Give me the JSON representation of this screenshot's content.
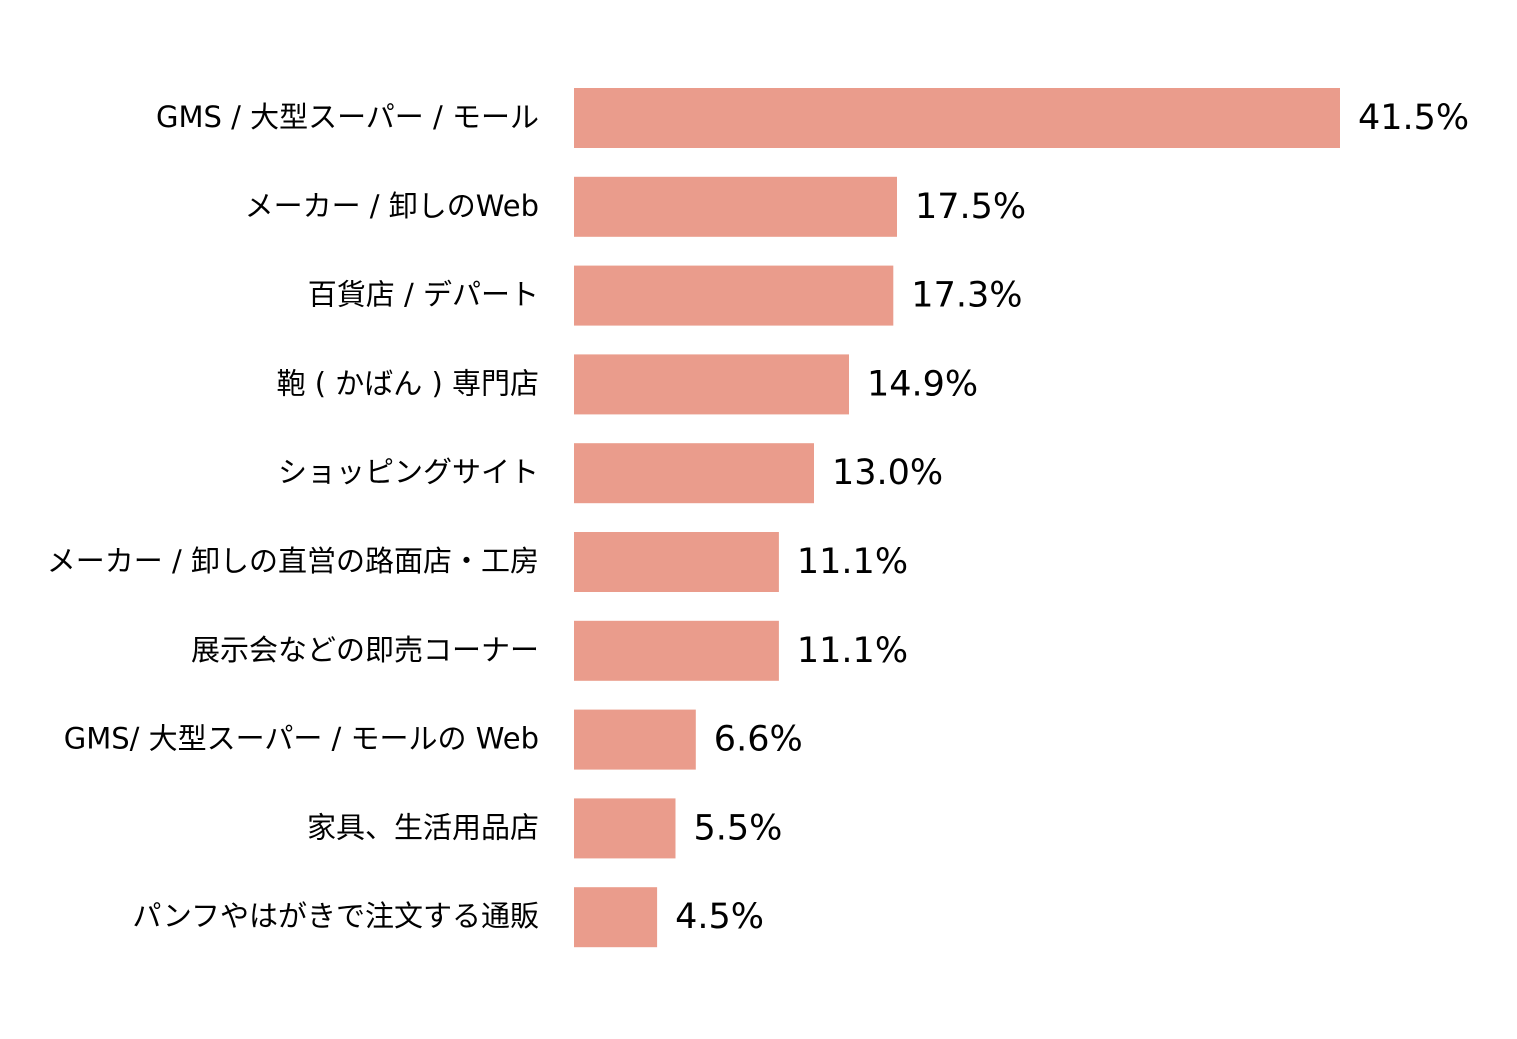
{
  "chart_data": {
    "type": "bar",
    "orientation": "horizontal",
    "title": "",
    "xlabel": "",
    "ylabel": "",
    "grid": false,
    "legend": "none",
    "xlim": [
      0,
      41.5
    ],
    "bar_color": "#ea9c8c",
    "categories": [
      "GMS / 大型スーパー / モール",
      "メーカー / 卸しのWeb",
      "百貨店 / デパート",
      "鞄 ( かばん ) 専門店",
      "ショッピングサイト",
      "メーカー / 卸しの直営の路面店・工房",
      "展示会などの即売コーナー",
      "GMS/ 大型スーパー / モールの Web",
      "家具、生活用品店",
      "パンフやはがきで注文する通販"
    ],
    "values": [
      41.5,
      17.5,
      17.3,
      14.9,
      13.0,
      11.1,
      11.1,
      6.6,
      5.5,
      4.5
    ],
    "value_labels": [
      "41.5%",
      "17.5%",
      "17.3%",
      "14.9%",
      "13.0%",
      "11.1%",
      "11.1%",
      "6.6%",
      "5.5%",
      "4.5%"
    ]
  }
}
